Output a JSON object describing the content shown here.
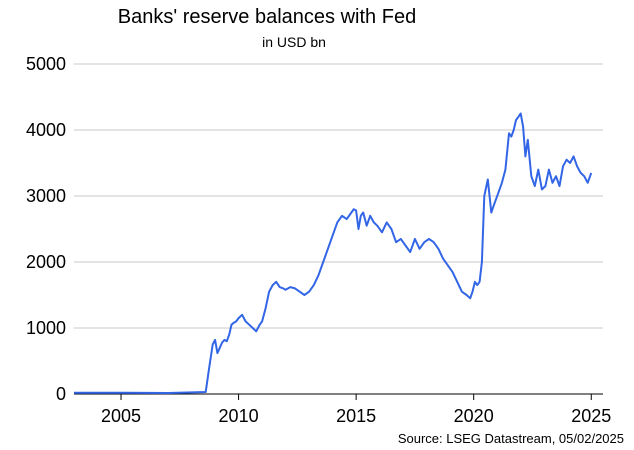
{
  "chart_data": {
    "type": "line",
    "title": "Banks' reserve balances with Fed",
    "subtitle": "in USD bn",
    "source": "Source: LSEG Datastream, 05/02/2025",
    "xlabel": "",
    "ylabel": "",
    "xlim": [
      2003.0,
      2025.5
    ],
    "ylim": [
      0,
      5000
    ],
    "x_ticks": [
      2005,
      2010,
      2015,
      2020,
      2025
    ],
    "y_ticks": [
      0,
      1000,
      2000,
      3000,
      4000,
      5000
    ],
    "grid": "horizontal",
    "legend": "none",
    "line_color": "#3366e6",
    "series": [
      {
        "x": [
          2003.0,
          2005.0,
          2007.0,
          2008.6,
          2008.75,
          2008.9,
          2009.0,
          2009.1,
          2009.2,
          2009.3,
          2009.4,
          2009.5,
          2009.6,
          2009.7,
          2009.8,
          2009.9,
          2010.0,
          2010.15,
          2010.3,
          2010.45,
          2010.6,
          2010.75,
          2010.9,
          2011.0,
          2011.15,
          2011.3,
          2011.45,
          2011.6,
          2011.75,
          2011.9,
          2012.0,
          2012.2,
          2012.4,
          2012.6,
          2012.8,
          2013.0,
          2013.2,
          2013.4,
          2013.6,
          2013.8,
          2014.0,
          2014.2,
          2014.4,
          2014.6,
          2014.8,
          2014.9,
          2015.0,
          2015.1,
          2015.2,
          2015.3,
          2015.45,
          2015.6,
          2015.75,
          2015.9,
          2016.1,
          2016.3,
          2016.5,
          2016.7,
          2016.9,
          2017.1,
          2017.3,
          2017.5,
          2017.7,
          2017.9,
          2018.1,
          2018.3,
          2018.5,
          2018.7,
          2018.9,
          2019.1,
          2019.3,
          2019.5,
          2019.7,
          2019.85,
          2019.95,
          2020.05,
          2020.15,
          2020.25,
          2020.35,
          2020.45,
          2020.6,
          2020.75,
          2020.9,
          2021.05,
          2021.2,
          2021.35,
          2021.5,
          2021.6,
          2021.7,
          2021.8,
          2021.9,
          2022.0,
          2022.1,
          2022.2,
          2022.3,
          2022.45,
          2022.6,
          2022.75,
          2022.9,
          2023.05,
          2023.2,
          2023.35,
          2023.5,
          2023.65,
          2023.8,
          2023.95,
          2024.1,
          2024.25,
          2024.4,
          2024.55,
          2024.7,
          2024.85,
          2025.0
        ],
        "y": [
          20,
          20,
          15,
          30,
          400,
          750,
          820,
          620,
          700,
          780,
          820,
          800,
          900,
          1050,
          1080,
          1100,
          1150,
          1200,
          1100,
          1050,
          1000,
          950,
          1050,
          1100,
          1300,
          1550,
          1650,
          1700,
          1620,
          1600,
          1580,
          1620,
          1600,
          1550,
          1500,
          1550,
          1650,
          1800,
          2000,
          2200,
          2400,
          2600,
          2700,
          2650,
          2750,
          2800,
          2780,
          2500,
          2700,
          2750,
          2550,
          2700,
          2600,
          2550,
          2450,
          2600,
          2500,
          2300,
          2350,
          2250,
          2150,
          2350,
          2200,
          2300,
          2350,
          2300,
          2200,
          2050,
          1950,
          1850,
          1700,
          1550,
          1500,
          1450,
          1550,
          1700,
          1650,
          1700,
          2000,
          3000,
          3250,
          2750,
          2900,
          3050,
          3200,
          3400,
          3950,
          3900,
          4000,
          4150,
          4200,
          4250,
          4050,
          3600,
          3850,
          3300,
          3150,
          3400,
          3100,
          3150,
          3400,
          3200,
          3300,
          3150,
          3450,
          3550,
          3500,
          3600,
          3450,
          3350,
          3300,
          3200,
          3350
        ]
      }
    ]
  }
}
